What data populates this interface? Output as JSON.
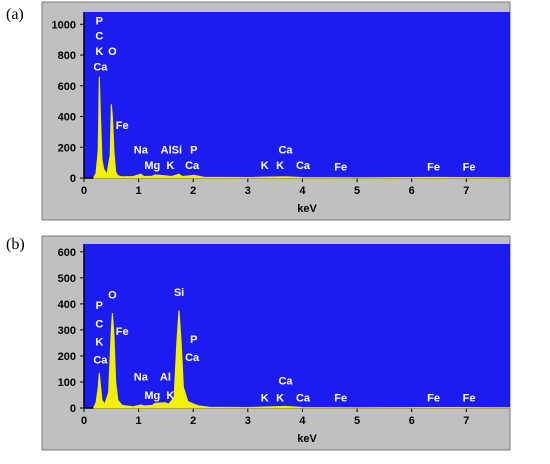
{
  "panels": [
    {
      "label": "(a)"
    },
    {
      "label": "(b)"
    }
  ],
  "colors": {
    "plot_background": "#1c1cf0",
    "spectrum": "#f0f000",
    "frame": "#c0c0c0",
    "annotation_text": "#ffffff"
  },
  "chart_data": [
    {
      "type": "line",
      "panel": "(a)",
      "xlabel": "keV",
      "ylabel": "",
      "xlim": [
        0,
        7.8
      ],
      "ylim": [
        0,
        1080
      ],
      "x_ticks": [
        0,
        1,
        2,
        3,
        4,
        5,
        6,
        7
      ],
      "x_tick_labels": [
        "0",
        "1",
        "2",
        "3",
        "4",
        "5",
        "6",
        "7"
      ],
      "y_ticks": [
        0,
        200,
        400,
        600,
        800,
        1000
      ],
      "y_tick_labels": [
        "0",
        "200",
        "400",
        "600",
        "800",
        "1000"
      ],
      "grid": false,
      "series": [
        {
          "x": [
            0.18,
            0.22,
            0.26,
            0.28,
            0.3,
            0.33,
            0.36,
            0.42,
            0.48,
            0.5,
            0.52,
            0.55,
            0.58,
            0.62,
            0.7,
            0.9,
            1.04,
            1.1,
            1.25,
            1.3,
            1.49,
            1.6,
            1.74,
            1.8,
            2.01,
            2.2,
            3.0,
            3.31,
            3.69,
            4.0,
            5.0,
            6.4,
            7.0,
            7.8
          ],
          "y": [
            5,
            30,
            180,
            660,
            420,
            120,
            60,
            25,
            150,
            480,
            400,
            170,
            40,
            15,
            8,
            10,
            25,
            10,
            12,
            20,
            15,
            10,
            25,
            10,
            18,
            5,
            3,
            6,
            8,
            3,
            2,
            4,
            3,
            2
          ]
        }
      ],
      "annotations": [
        {
          "text": "P",
          "x": 0.28,
          "y": 1000
        },
        {
          "text": "C",
          "x": 0.28,
          "y": 900
        },
        {
          "text": "K",
          "x": 0.28,
          "y": 800
        },
        {
          "text": "O",
          "x": 0.52,
          "y": 800
        },
        {
          "text": "Ca",
          "x": 0.3,
          "y": 700
        },
        {
          "text": "Fe",
          "x": 0.7,
          "y": 320
        },
        {
          "text": "Na",
          "x": 1.04,
          "y": 160
        },
        {
          "text": "Mg",
          "x": 1.25,
          "y": 60
        },
        {
          "text": "AlSi",
          "x": 1.6,
          "y": 160
        },
        {
          "text": "P",
          "x": 2.01,
          "y": 160
        },
        {
          "text": "K",
          "x": 1.58,
          "y": 60
        },
        {
          "text": "Ca",
          "x": 1.98,
          "y": 60
        },
        {
          "text": "K",
          "x": 3.31,
          "y": 60
        },
        {
          "text": "Ca",
          "x": 3.69,
          "y": 160
        },
        {
          "text": "K",
          "x": 3.59,
          "y": 60
        },
        {
          "text": "Ca",
          "x": 4.01,
          "y": 60
        },
        {
          "text": "Fe",
          "x": 4.7,
          "y": 50
        },
        {
          "text": "Fe",
          "x": 6.4,
          "y": 50
        },
        {
          "text": "Fe",
          "x": 7.05,
          "y": 50
        }
      ]
    },
    {
      "type": "line",
      "panel": "(b)",
      "xlabel": "keV",
      "ylabel": "",
      "xlim": [
        0,
        7.8
      ],
      "ylim": [
        0,
        630
      ],
      "x_ticks": [
        0,
        1,
        2,
        3,
        4,
        5,
        6,
        7
      ],
      "x_tick_labels": [
        "0",
        "1",
        "2",
        "3",
        "4",
        "5",
        "6",
        "7"
      ],
      "y_ticks": [
        0,
        100,
        200,
        300,
        400,
        500,
        600
      ],
      "y_tick_labels": [
        "0",
        "100",
        "200",
        "300",
        "400",
        "500",
        "600"
      ],
      "grid": false,
      "series": [
        {
          "x": [
            0.18,
            0.22,
            0.26,
            0.28,
            0.3,
            0.33,
            0.38,
            0.45,
            0.5,
            0.52,
            0.55,
            0.58,
            0.62,
            0.7,
            0.9,
            1.04,
            1.1,
            1.25,
            1.3,
            1.49,
            1.55,
            1.65,
            1.7,
            1.74,
            1.78,
            1.82,
            1.9,
            2.01,
            2.1,
            2.3,
            3.0,
            3.31,
            3.69,
            4.0,
            5.0,
            6.4,
            7.0,
            7.8
          ],
          "y": [
            3,
            20,
            80,
            135,
            90,
            30,
            15,
            60,
            300,
            365,
            280,
            100,
            30,
            10,
            5,
            12,
            8,
            10,
            18,
            20,
            15,
            40,
            250,
            375,
            250,
            80,
            25,
            15,
            8,
            3,
            2,
            4,
            6,
            2,
            1,
            2,
            2,
            1
          ]
        }
      ],
      "annotations": [
        {
          "text": "P",
          "x": 0.28,
          "y": 380
        },
        {
          "text": "O",
          "x": 0.52,
          "y": 420
        },
        {
          "text": "C",
          "x": 0.28,
          "y": 310
        },
        {
          "text": "Fe",
          "x": 0.7,
          "y": 280
        },
        {
          "text": "K",
          "x": 0.28,
          "y": 240
        },
        {
          "text": "Ca",
          "x": 0.3,
          "y": 170
        },
        {
          "text": "Si",
          "x": 1.74,
          "y": 430
        },
        {
          "text": "P",
          "x": 2.01,
          "y": 250
        },
        {
          "text": "Ca",
          "x": 1.98,
          "y": 180
        },
        {
          "text": "Na",
          "x": 1.04,
          "y": 105
        },
        {
          "text": "Al",
          "x": 1.49,
          "y": 105
        },
        {
          "text": "Mg",
          "x": 1.25,
          "y": 35
        },
        {
          "text": "K",
          "x": 1.58,
          "y": 35
        },
        {
          "text": "K",
          "x": 3.31,
          "y": 25
        },
        {
          "text": "Ca",
          "x": 3.69,
          "y": 90
        },
        {
          "text": "K",
          "x": 3.59,
          "y": 25
        },
        {
          "text": "Ca",
          "x": 4.01,
          "y": 25
        },
        {
          "text": "Fe",
          "x": 4.7,
          "y": 25
        },
        {
          "text": "Fe",
          "x": 6.4,
          "y": 25
        },
        {
          "text": "Fe",
          "x": 7.05,
          "y": 25
        }
      ]
    }
  ]
}
